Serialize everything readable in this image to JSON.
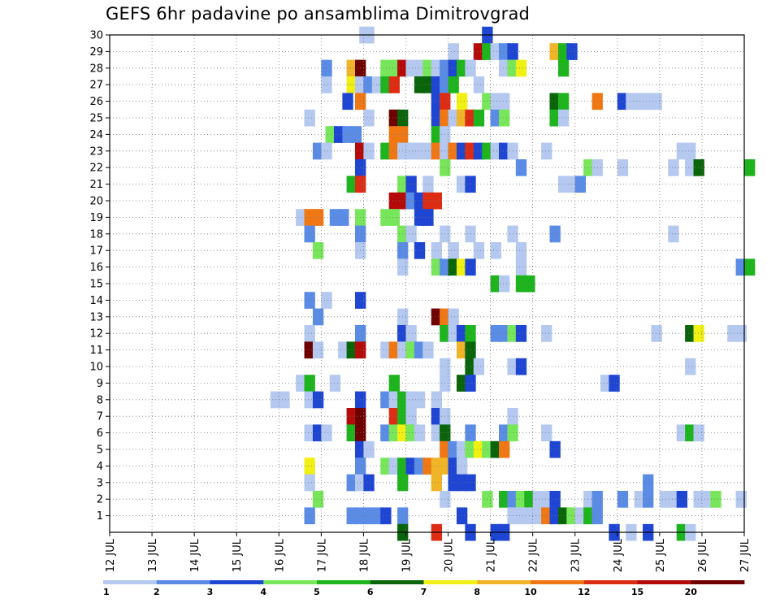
{
  "chart_data": {
    "type": "heatmap",
    "title": "GEFS 6hr padavine po ansamblima Dimitrovgrad",
    "x_ticks": [
      "12 JUL",
      "13 JUL",
      "14 JUL",
      "15 JUL",
      "16 JUL",
      "17 JUL",
      "18 JUL",
      "19 JUL",
      "20 JUL",
      "21 JUL",
      "22 JUL",
      "23 JUL",
      "24 JUL",
      "25 JUL",
      "26 JUL",
      "27 JUL"
    ],
    "y_ticks": [
      "1",
      "2",
      "3",
      "4",
      "5",
      "6",
      "7",
      "8",
      "9",
      "10",
      "11",
      "12",
      "13",
      "14",
      "15",
      "16",
      "17",
      "18",
      "19",
      "20",
      "21",
      "22",
      "23",
      "24",
      "25",
      "26",
      "27",
      "28",
      "29",
      "30"
    ],
    "x_range": [
      "12 JUL",
      "27 JUL"
    ],
    "y_range": [
      0,
      30
    ],
    "time_step_hours": 6,
    "grid": true,
    "colorbar": {
      "labels": [
        "1",
        "2",
        "3",
        "4",
        "5",
        "6",
        "7",
        "8",
        "10",
        "12",
        "15",
        "20"
      ],
      "colors": [
        "#b4c8f0",
        "#5a8ce6",
        "#1e46d2",
        "#78e65a",
        "#1eb41e",
        "#0a640a",
        "#f0f014",
        "#f0b428",
        "#f07814",
        "#dc2d14",
        "#b40a0a",
        "#6e0000"
      ]
    },
    "cells": [
      [
        30,
        5.9,
        1
      ],
      [
        30,
        6.0,
        1
      ],
      [
        30,
        8.8,
        3
      ],
      [
        29,
        8.0,
        1
      ],
      [
        29,
        8.6,
        11
      ],
      [
        29,
        8.8,
        5
      ],
      [
        29,
        9.0,
        1
      ],
      [
        29,
        9.2,
        2
      ],
      [
        29,
        9.4,
        3
      ],
      [
        29,
        10.4,
        8
      ],
      [
        29,
        10.6,
        5
      ],
      [
        29,
        10.8,
        3
      ],
      [
        28,
        5.0,
        2
      ],
      [
        28,
        5.6,
        8
      ],
      [
        28,
        5.8,
        12
      ],
      [
        28,
        6.4,
        4
      ],
      [
        28,
        6.6,
        4
      ],
      [
        28,
        6.8,
        11
      ],
      [
        28,
        7.0,
        1
      ],
      [
        28,
        7.2,
        1
      ],
      [
        28,
        7.4,
        4
      ],
      [
        28,
        7.6,
        1
      ],
      [
        28,
        7.8,
        2
      ],
      [
        28,
        8.0,
        3
      ],
      [
        28,
        8.2,
        5
      ],
      [
        28,
        8.4,
        1
      ],
      [
        28,
        9.2,
        1
      ],
      [
        28,
        9.4,
        4
      ],
      [
        28,
        9.6,
        7
      ],
      [
        28,
        10.6,
        5
      ],
      [
        27,
        5.0,
        1
      ],
      [
        27,
        5.6,
        7
      ],
      [
        27,
        5.8,
        1
      ],
      [
        27,
        6.0,
        2
      ],
      [
        27,
        6.2,
        1
      ],
      [
        27,
        6.4,
        5
      ],
      [
        27,
        6.6,
        10
      ],
      [
        27,
        7.2,
        6
      ],
      [
        27,
        7.4,
        6
      ],
      [
        27,
        7.6,
        3
      ],
      [
        27,
        7.8,
        2
      ],
      [
        27,
        8.0,
        5
      ],
      [
        27,
        8.6,
        1
      ],
      [
        26,
        5.5,
        3
      ],
      [
        26,
        5.8,
        9
      ],
      [
        26,
        7.6,
        3
      ],
      [
        26,
        7.8,
        10
      ],
      [
        26,
        8.2,
        7
      ],
      [
        26,
        8.8,
        4
      ],
      [
        26,
        9.0,
        1
      ],
      [
        26,
        9.2,
        1
      ],
      [
        26,
        10.4,
        6
      ],
      [
        26,
        10.6,
        5
      ],
      [
        26,
        11.4,
        9
      ],
      [
        26,
        12.0,
        3
      ],
      [
        26,
        12.2,
        1
      ],
      [
        26,
        12.4,
        1
      ],
      [
        26,
        12.6,
        1
      ],
      [
        26,
        12.8,
        1
      ],
      [
        25,
        4.6,
        1
      ],
      [
        25,
        6.0,
        1
      ],
      [
        25,
        6.6,
        12
      ],
      [
        25,
        6.8,
        6
      ],
      [
        25,
        7.6,
        3
      ],
      [
        25,
        7.8,
        9
      ],
      [
        25,
        8.0,
        1
      ],
      [
        25,
        8.2,
        8
      ],
      [
        25,
        8.4,
        10
      ],
      [
        25,
        8.6,
        5
      ],
      [
        25,
        9.0,
        2
      ],
      [
        25,
        9.2,
        4
      ],
      [
        25,
        10.4,
        5
      ],
      [
        25,
        10.6,
        1
      ],
      [
        24,
        5.1,
        4
      ],
      [
        24,
        5.3,
        3
      ],
      [
        24,
        5.5,
        2
      ],
      [
        24,
        5.7,
        2
      ],
      [
        24,
        6.6,
        9
      ],
      [
        24,
        6.8,
        9
      ],
      [
        24,
        7.6,
        5
      ],
      [
        24,
        7.8,
        1
      ],
      [
        23,
        4.8,
        2
      ],
      [
        23,
        5.0,
        1
      ],
      [
        23,
        5.8,
        11
      ],
      [
        23,
        6.0,
        1
      ],
      [
        23,
        6.4,
        5
      ],
      [
        23,
        6.6,
        9
      ],
      [
        23,
        6.8,
        1
      ],
      [
        23,
        7.0,
        1
      ],
      [
        23,
        7.2,
        1
      ],
      [
        23,
        7.4,
        1
      ],
      [
        23,
        7.6,
        9
      ],
      [
        23,
        7.8,
        1
      ],
      [
        23,
        8.0,
        9
      ],
      [
        23,
        8.2,
        3
      ],
      [
        23,
        8.4,
        10
      ],
      [
        23,
        8.6,
        3
      ],
      [
        23,
        8.8,
        5
      ],
      [
        23,
        9.0,
        1
      ],
      [
        23,
        9.2,
        3
      ],
      [
        23,
        9.4,
        1
      ],
      [
        23,
        10.2,
        1
      ],
      [
        23,
        13.4,
        1
      ],
      [
        23,
        13.6,
        1
      ],
      [
        22,
        5.8,
        3
      ],
      [
        22,
        7.8,
        4
      ],
      [
        22,
        9.6,
        2
      ],
      [
        22,
        11.2,
        4
      ],
      [
        22,
        11.4,
        1
      ],
      [
        22,
        12.0,
        1
      ],
      [
        22,
        13.2,
        1
      ],
      [
        22,
        13.6,
        1
      ],
      [
        22,
        13.8,
        6
      ],
      [
        22,
        15.0,
        5
      ],
      [
        21,
        5.6,
        5
      ],
      [
        21,
        5.8,
        10
      ],
      [
        21,
        6.8,
        4
      ],
      [
        21,
        7.0,
        3
      ],
      [
        21,
        7.4,
        1
      ],
      [
        21,
        8.2,
        1
      ],
      [
        21,
        8.4,
        3
      ],
      [
        21,
        10.6,
        1
      ],
      [
        21,
        10.8,
        1
      ],
      [
        21,
        11.0,
        2
      ],
      [
        20,
        6.6,
        11
      ],
      [
        20,
        6.8,
        11
      ],
      [
        20,
        7.0,
        2
      ],
      [
        20,
        7.2,
        3
      ],
      [
        20,
        7.4,
        10
      ],
      [
        20,
        7.6,
        10
      ],
      [
        19,
        4.4,
        1
      ],
      [
        19,
        4.6,
        9
      ],
      [
        19,
        4.8,
        9
      ],
      [
        19,
        5.2,
        2
      ],
      [
        19,
        5.4,
        2
      ],
      [
        19,
        5.8,
        4
      ],
      [
        19,
        6.4,
        4
      ],
      [
        19,
        6.6,
        4
      ],
      [
        19,
        7.2,
        3
      ],
      [
        19,
        7.4,
        3
      ],
      [
        18,
        4.6,
        2
      ],
      [
        18,
        5.8,
        2
      ],
      [
        18,
        6.8,
        4
      ],
      [
        18,
        7.0,
        1
      ],
      [
        18,
        7.8,
        1
      ],
      [
        18,
        8.4,
        1
      ],
      [
        18,
        9.4,
        1
      ],
      [
        18,
        10.4,
        2
      ],
      [
        18,
        13.2,
        1
      ],
      [
        17,
        4.8,
        4
      ],
      [
        17,
        5.8,
        1
      ],
      [
        17,
        6.8,
        2
      ],
      [
        17,
        7.2,
        3
      ],
      [
        17,
        7.6,
        1
      ],
      [
        17,
        8.0,
        1
      ],
      [
        17,
        8.6,
        1
      ],
      [
        17,
        9.0,
        1
      ],
      [
        17,
        9.6,
        1
      ],
      [
        16,
        6.8,
        1
      ],
      [
        16,
        7.6,
        4
      ],
      [
        16,
        7.8,
        2
      ],
      [
        16,
        8.0,
        6
      ],
      [
        16,
        8.2,
        7
      ],
      [
        16,
        8.4,
        3
      ],
      [
        16,
        9.6,
        1
      ],
      [
        16,
        14.8,
        2
      ],
      [
        16,
        15.0,
        5
      ],
      [
        15,
        9.0,
        5
      ],
      [
        15,
        9.2,
        1
      ],
      [
        15,
        9.6,
        5
      ],
      [
        15,
        9.8,
        5
      ],
      [
        14,
        4.6,
        2
      ],
      [
        14,
        5.0,
        1
      ],
      [
        14,
        5.8,
        3
      ],
      [
        13,
        4.8,
        2
      ],
      [
        13,
        6.8,
        1
      ],
      [
        13,
        7.6,
        12
      ],
      [
        13,
        7.8,
        9
      ],
      [
        13,
        8.0,
        1
      ],
      [
        12,
        4.6,
        1
      ],
      [
        12,
        5.8,
        2
      ],
      [
        12,
        6.8,
        3
      ],
      [
        12,
        7.0,
        1
      ],
      [
        12,
        7.8,
        5
      ],
      [
        12,
        8.0,
        1
      ],
      [
        12,
        8.2,
        3
      ],
      [
        12,
        8.4,
        5
      ],
      [
        12,
        9.0,
        2
      ],
      [
        12,
        9.2,
        2
      ],
      [
        12,
        9.4,
        4
      ],
      [
        12,
        9.6,
        3
      ],
      [
        12,
        10.2,
        1
      ],
      [
        12,
        12.8,
        1
      ],
      [
        12,
        13.6,
        6
      ],
      [
        12,
        13.8,
        7
      ],
      [
        12,
        14.6,
        1
      ],
      [
        12,
        14.8,
        1
      ],
      [
        11,
        4.6,
        12
      ],
      [
        11,
        4.8,
        1
      ],
      [
        11,
        5.4,
        1
      ],
      [
        11,
        5.6,
        6
      ],
      [
        11,
        5.8,
        11
      ],
      [
        11,
        6.4,
        1
      ],
      [
        11,
        6.6,
        9
      ],
      [
        11,
        6.8,
        1
      ],
      [
        11,
        7.0,
        4
      ],
      [
        11,
        7.2,
        2
      ],
      [
        11,
        7.4,
        1
      ],
      [
        11,
        8.2,
        8
      ],
      [
        11,
        8.4,
        6
      ],
      [
        10,
        7.8,
        1
      ],
      [
        10,
        8.4,
        6
      ],
      [
        10,
        8.6,
        1
      ],
      [
        10,
        9.4,
        1
      ],
      [
        10,
        9.6,
        3
      ],
      [
        10,
        13.6,
        1
      ],
      [
        9,
        4.4,
        1
      ],
      [
        9,
        4.6,
        5
      ],
      [
        9,
        5.2,
        1
      ],
      [
        9,
        6.6,
        5
      ],
      [
        9,
        7.8,
        1
      ],
      [
        9,
        8.2,
        6
      ],
      [
        9,
        8.4,
        3
      ],
      [
        9,
        11.6,
        1
      ],
      [
        9,
        11.8,
        3
      ],
      [
        8,
        3.8,
        1
      ],
      [
        8,
        4.0,
        1
      ],
      [
        8,
        4.6,
        1
      ],
      [
        8,
        4.8,
        3
      ],
      [
        8,
        5.8,
        3
      ],
      [
        8,
        6.4,
        2
      ],
      [
        8,
        6.6,
        1
      ],
      [
        8,
        6.8,
        5
      ],
      [
        8,
        7.0,
        1
      ],
      [
        8,
        7.2,
        1
      ],
      [
        8,
        7.6,
        1
      ],
      [
        7,
        5.6,
        11
      ],
      [
        7,
        5.8,
        12
      ],
      [
        7,
        6.6,
        10
      ],
      [
        7,
        6.8,
        5
      ],
      [
        7,
        7.0,
        1
      ],
      [
        7,
        7.6,
        3
      ],
      [
        7,
        7.8,
        1
      ],
      [
        7,
        9.4,
        1
      ],
      [
        6,
        4.6,
        1
      ],
      [
        6,
        4.8,
        3
      ],
      [
        6,
        5.0,
        1
      ],
      [
        6,
        5.6,
        5
      ],
      [
        6,
        5.8,
        12
      ],
      [
        6,
        6.4,
        2
      ],
      [
        6,
        6.6,
        4
      ],
      [
        6,
        6.8,
        7
      ],
      [
        6,
        7.0,
        4
      ],
      [
        6,
        7.2,
        1
      ],
      [
        6,
        7.6,
        1
      ],
      [
        6,
        7.8,
        6
      ],
      [
        6,
        8.4,
        2
      ],
      [
        6,
        9.2,
        2
      ],
      [
        6,
        9.4,
        4
      ],
      [
        6,
        10.2,
        1
      ],
      [
        6,
        13.4,
        1
      ],
      [
        6,
        13.6,
        5
      ],
      [
        6,
        13.8,
        1
      ],
      [
        5,
        5.8,
        3
      ],
      [
        5,
        6.0,
        1
      ],
      [
        5,
        7.8,
        9
      ],
      [
        5,
        8.0,
        2
      ],
      [
        5,
        8.2,
        1
      ],
      [
        5,
        8.4,
        4
      ],
      [
        5,
        8.6,
        7
      ],
      [
        5,
        8.8,
        4
      ],
      [
        5,
        9.0,
        6
      ],
      [
        5,
        9.2,
        9
      ],
      [
        5,
        10.4,
        3
      ],
      [
        4,
        4.6,
        7
      ],
      [
        4,
        5.8,
        2
      ],
      [
        4,
        6.4,
        4
      ],
      [
        4,
        6.6,
        1
      ],
      [
        4,
        6.8,
        5
      ],
      [
        4,
        7.0,
        3
      ],
      [
        4,
        7.2,
        2
      ],
      [
        4,
        7.4,
        9
      ],
      [
        4,
        7.6,
        8
      ],
      [
        4,
        7.8,
        8
      ],
      [
        4,
        8.0,
        3
      ],
      [
        4,
        8.2,
        1
      ],
      [
        3,
        4.6,
        1
      ],
      [
        3,
        5.6,
        2
      ],
      [
        3,
        5.8,
        1
      ],
      [
        3,
        6.0,
        3
      ],
      [
        3,
        6.8,
        5
      ],
      [
        3,
        7.6,
        8
      ],
      [
        3,
        8.0,
        3
      ],
      [
        3,
        8.2,
        3
      ],
      [
        3,
        8.4,
        3
      ],
      [
        3,
        12.6,
        2
      ],
      [
        2,
        4.8,
        4
      ],
      [
        2,
        7.8,
        1
      ],
      [
        2,
        8.8,
        4
      ],
      [
        2,
        9.2,
        5
      ],
      [
        2,
        9.4,
        2
      ],
      [
        2,
        9.6,
        4
      ],
      [
        2,
        9.8,
        5
      ],
      [
        2,
        10.0,
        1
      ],
      [
        2,
        10.2,
        1
      ],
      [
        2,
        10.4,
        3
      ],
      [
        2,
        11.2,
        1
      ],
      [
        2,
        11.4,
        2
      ],
      [
        2,
        12.0,
        2
      ],
      [
        2,
        12.4,
        1
      ],
      [
        2,
        12.6,
        2
      ],
      [
        2,
        13.0,
        1
      ],
      [
        2,
        13.2,
        1
      ],
      [
        2,
        13.4,
        3
      ],
      [
        2,
        13.8,
        1
      ],
      [
        2,
        14.0,
        1
      ],
      [
        2,
        14.2,
        4
      ],
      [
        2,
        14.8,
        1
      ],
      [
        1,
        4.6,
        2
      ],
      [
        1,
        5.6,
        2
      ],
      [
        1,
        5.8,
        2
      ],
      [
        1,
        6.0,
        2
      ],
      [
        1,
        6.2,
        2
      ],
      [
        1,
        6.4,
        3
      ],
      [
        1,
        6.8,
        2
      ],
      [
        1,
        8.2,
        3
      ],
      [
        1,
        9.4,
        1
      ],
      [
        1,
        9.6,
        1
      ],
      [
        1,
        9.8,
        1
      ],
      [
        1,
        10.0,
        1
      ],
      [
        1,
        10.2,
        9
      ],
      [
        1,
        10.4,
        3
      ],
      [
        1,
        10.6,
        6
      ],
      [
        1,
        10.8,
        4
      ],
      [
        1,
        11.0,
        1
      ],
      [
        1,
        11.2,
        5
      ],
      [
        1,
        11.4,
        2
      ],
      [
        0,
        6.8,
        6
      ],
      [
        0,
        7.6,
        10
      ],
      [
        0,
        8.4,
        3
      ],
      [
        0,
        9.0,
        3
      ],
      [
        0,
        9.2,
        3
      ],
      [
        0,
        11.8,
        3
      ],
      [
        0,
        12.2,
        1
      ],
      [
        0,
        12.6,
        3
      ],
      [
        0,
        13.4,
        5
      ],
      [
        0,
        13.6,
        1
      ]
    ]
  }
}
